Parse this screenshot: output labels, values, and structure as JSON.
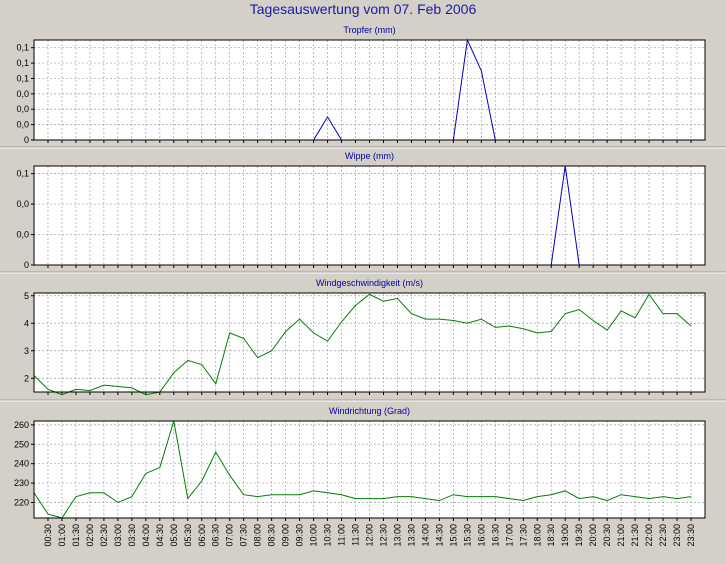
{
  "page": {
    "title": "Tagesauswertung vom 07. Feb 2006"
  },
  "chart_data": [
    {
      "type": "line",
      "title": "Tropfer (mm)",
      "color": "#0000c0",
      "ylim": [
        0,
        0.13
      ],
      "yticks": [
        0,
        0.02,
        0.04,
        0.06,
        0.08,
        0.1,
        0.12
      ],
      "ytick_labels": [
        "0",
        "0,0",
        "0,0",
        "0,0",
        "0,1",
        "0,1",
        "0,1"
      ],
      "x": [
        "10:00",
        "10:30",
        "11:00",
        "15:00",
        "15:30",
        "16:00",
        "16:30"
      ],
      "values": [
        0,
        0.03,
        0,
        0,
        0.13,
        0.09,
        0
      ]
    },
    {
      "type": "line",
      "title": "Wippe (mm)",
      "color": "#0000c0",
      "ylim": [
        0,
        0.13
      ],
      "yticks": [
        0,
        0.04,
        0.08,
        0.12
      ],
      "ytick_labels": [
        "0",
        "0,0",
        "0,0",
        "0,1"
      ],
      "x": [
        "18:30",
        "19:00",
        "19:30"
      ],
      "values": [
        0,
        0.13,
        0
      ]
    },
    {
      "type": "line",
      "title": "Windgeschwindigkeit (m/s)",
      "color": "#008000",
      "ylim": [
        1.5,
        5.1
      ],
      "yticks": [
        2,
        3,
        4,
        5
      ],
      "ytick_labels": [
        "2",
        "3",
        "4",
        "5"
      ],
      "x_start": "00:00",
      "x_step_min": 30,
      "values": [
        2.1,
        1.6,
        1.4,
        1.6,
        1.55,
        1.75,
        1.7,
        1.65,
        1.4,
        1.5,
        2.2,
        2.65,
        2.5,
        1.8,
        3.65,
        3.45,
        2.75,
        3.0,
        3.7,
        4.15,
        3.65,
        3.35,
        4.05,
        4.65,
        5.05,
        4.8,
        4.9,
        4.35,
        4.15,
        4.15,
        4.1,
        4.0,
        4.15,
        3.85,
        3.9,
        3.8,
        3.65,
        3.7,
        4.35,
        4.5,
        4.1,
        3.75,
        4.45,
        4.2,
        5.05,
        4.35,
        4.35,
        3.9
      ]
    },
    {
      "type": "line",
      "title": "Windrichtung (Grad)",
      "color": "#008000",
      "ylim": [
        212,
        262
      ],
      "yticks": [
        220,
        230,
        240,
        250,
        260
      ],
      "ytick_labels": [
        "220",
        "230",
        "240",
        "250",
        "260"
      ],
      "x_start": "00:00",
      "x_step_min": 30,
      "values": [
        225,
        214,
        212,
        223,
        225,
        225,
        220,
        223,
        235,
        238,
        262,
        222,
        231,
        246,
        234,
        224,
        223,
        224,
        224,
        224,
        226,
        225,
        224,
        222,
        222,
        222,
        223,
        223,
        222,
        221,
        224,
        223,
        223,
        223,
        222,
        221,
        223,
        224,
        226,
        222,
        223,
        221,
        224,
        223,
        222,
        223,
        222,
        223
      ]
    }
  ],
  "x_axis": {
    "tick_labels": [
      "00:30",
      "01:00",
      "01:30",
      "02:00",
      "02:30",
      "03:00",
      "03:30",
      "04:00",
      "04:30",
      "05:00",
      "05:30",
      "06:00",
      "06:30",
      "07:00",
      "07:30",
      "08:00",
      "08:30",
      "09:00",
      "09:30",
      "10:00",
      "10:30",
      "11:00",
      "11:30",
      "12:00",
      "12:30",
      "13:00",
      "13:30",
      "14:00",
      "14:30",
      "15:00",
      "15:30",
      "16:00",
      "16:30",
      "17:00",
      "17:30",
      "18:00",
      "18:30",
      "19:00",
      "19:30",
      "20:00",
      "20:30",
      "21:00",
      "21:30",
      "22:00",
      "22:30",
      "23:00",
      "23:30"
    ]
  }
}
